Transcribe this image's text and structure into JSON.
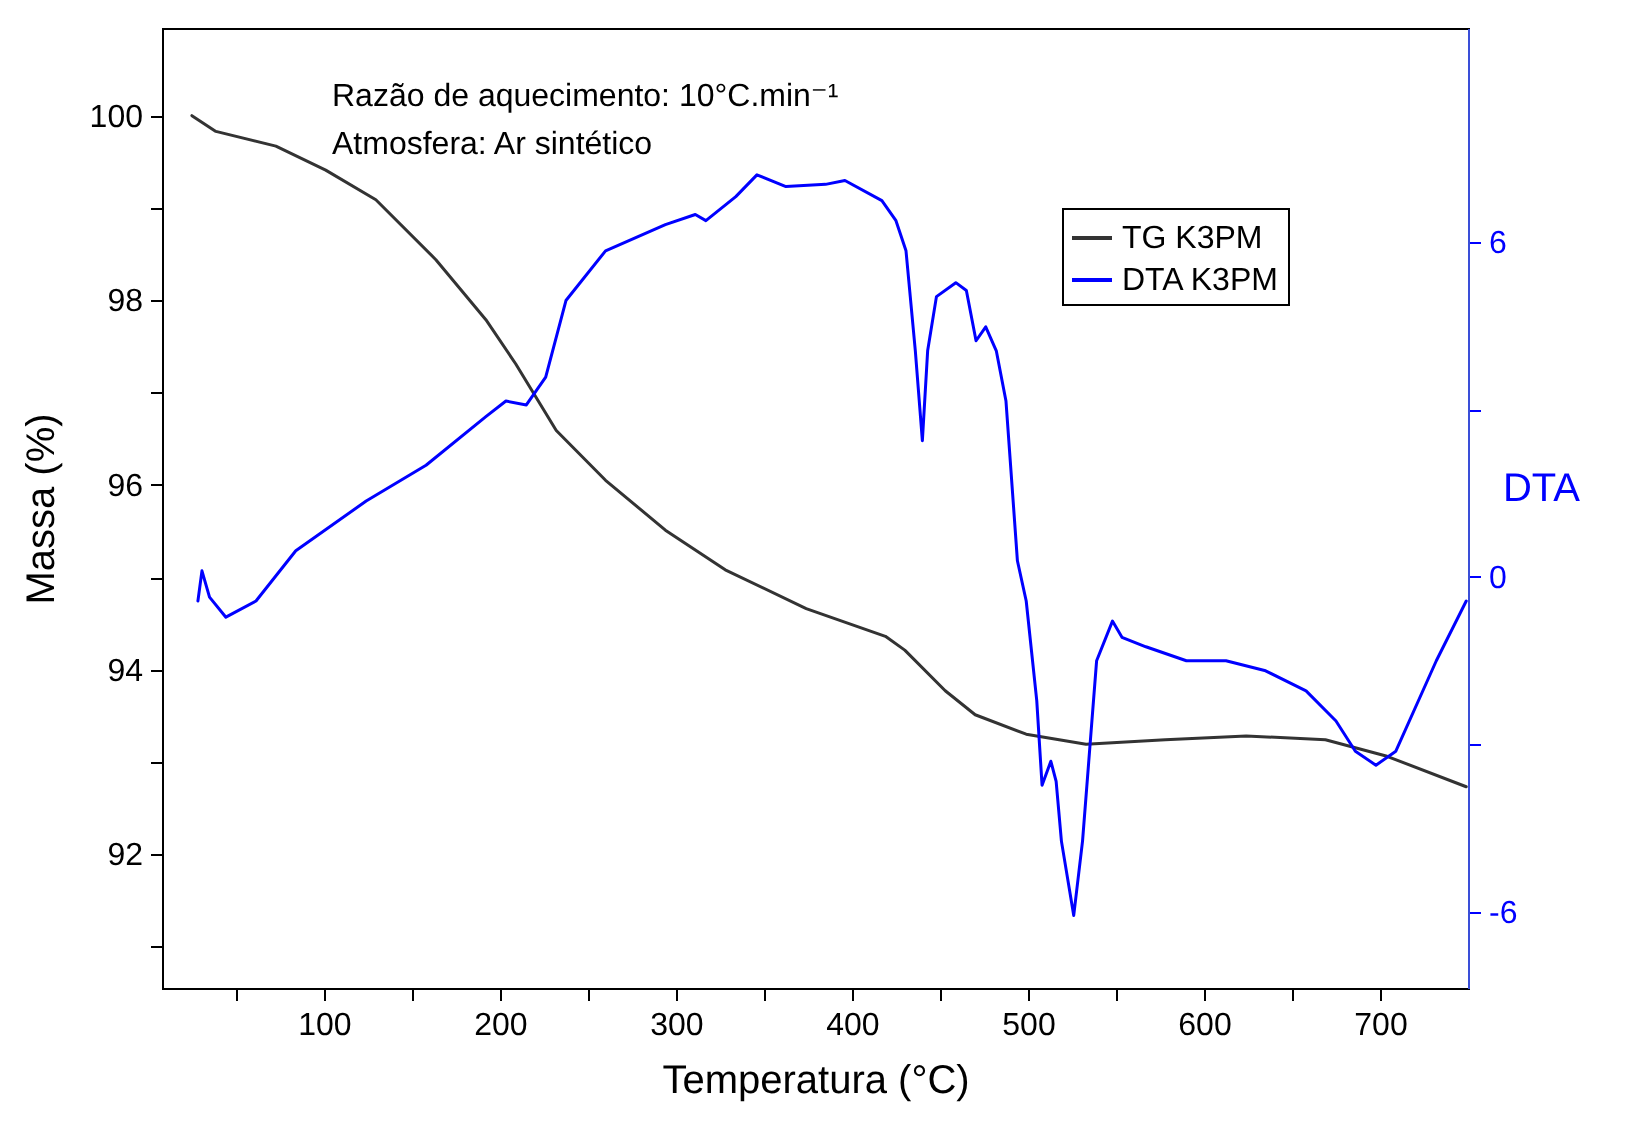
{
  "chart_data": {
    "type": "line",
    "xlabel": "Temperatura (°C)",
    "ylabel": "Massa (%)",
    "y2label": "DTA",
    "annotations": [
      "Razão de aquecimento: 10°C.min⁻¹",
      "Atmosfera: Ar sintético"
    ],
    "xlim": [
      8,
      750
    ],
    "ylim": [
      90.55,
      100.95
    ],
    "y2lim": [
      -7.36,
      9.83
    ],
    "xticks": [
      {
        "value": 50,
        "label": null
      },
      100,
      {
        "value": 150,
        "label": null
      },
      200,
      {
        "value": 250,
        "label": null
      },
      300,
      {
        "value": 350,
        "label": null
      },
      400,
      {
        "value": 450,
        "label": null
      },
      500,
      {
        "value": 550,
        "label": null
      },
      600,
      {
        "value": 650,
        "label": null
      },
      700
    ],
    "yticks": [
      {
        "value": 91,
        "label": null
      },
      92,
      {
        "value": 93,
        "label": null
      },
      94,
      {
        "value": 95,
        "label": null
      },
      96,
      {
        "value": 97,
        "label": null
      },
      98,
      {
        "value": 99,
        "label": null
      },
      100
    ],
    "y2ticks": [
      -6,
      {
        "value": -3,
        "label": null
      },
      0,
      {
        "value": 3,
        "label": null
      },
      6
    ],
    "grid": false,
    "legend": "top right",
    "marker": "none",
    "line_style": "solid",
    "series": [
      {
        "name": "TG K3PM",
        "color": "#333333",
        "x": [
          25,
          38.6,
          72.7,
          101,
          129.5,
          163.6,
          192,
          209,
          232,
          260,
          294,
          328,
          374,
          419,
          430,
          453,
          470,
          499,
          533,
          578,
          624,
          669,
          704,
          749
        ],
        "values": [
          100.0,
          99.83,
          99.67,
          99.41,
          99.09,
          98.44,
          97.79,
          97.31,
          96.59,
          96.05,
          95.51,
          95.08,
          94.66,
          94.36,
          94.21,
          93.77,
          93.51,
          93.3,
          93.19,
          93.24,
          93.28,
          93.24,
          93.06,
          92.73
        ]
      },
      {
        "name": "DTA K3PM",
        "color": "#0000ff",
        "axis": "y2",
        "x": [
          28.4,
          30.7,
          35,
          44.3,
          61.4,
          84,
          124,
          158,
          192,
          203.4,
          215,
          226,
          237.5,
          260,
          294,
          311,
          317,
          334,
          346,
          362.5,
          385,
          396,
          417,
          425,
          430.7,
          436,
          440,
          443,
          448,
          459,
          465,
          470.5,
          476,
          482,
          487.5,
          494,
          499,
          505,
          508,
          513,
          516,
          519,
          526,
          531,
          539,
          548,
          553.4,
          567,
          590,
          612.5,
          635,
          658,
          675,
          686,
          697.7,
          709,
          732,
          749
        ],
        "values": [
          -0.43,
          0.11,
          -0.36,
          -0.72,
          -0.43,
          0.47,
          1.36,
          2.0,
          2.87,
          3.15,
          3.08,
          3.58,
          4.95,
          5.84,
          6.31,
          6.49,
          6.38,
          6.81,
          7.2,
          6.99,
          7.03,
          7.1,
          6.74,
          6.38,
          5.84,
          4.05,
          2.44,
          4.05,
          5.02,
          5.27,
          5.13,
          4.23,
          4.48,
          4.05,
          3.15,
          0.29,
          -0.43,
          -2.22,
          -3.73,
          -3.3,
          -3.66,
          -4.73,
          -6.06,
          -4.73,
          -1.5,
          -0.79,
          -1.08,
          -1.25,
          -1.5,
          -1.5,
          -1.68,
          -2.04,
          -2.58,
          -3.12,
          -3.37,
          -3.12,
          -1.5,
          -0.43
        ]
      }
    ]
  }
}
